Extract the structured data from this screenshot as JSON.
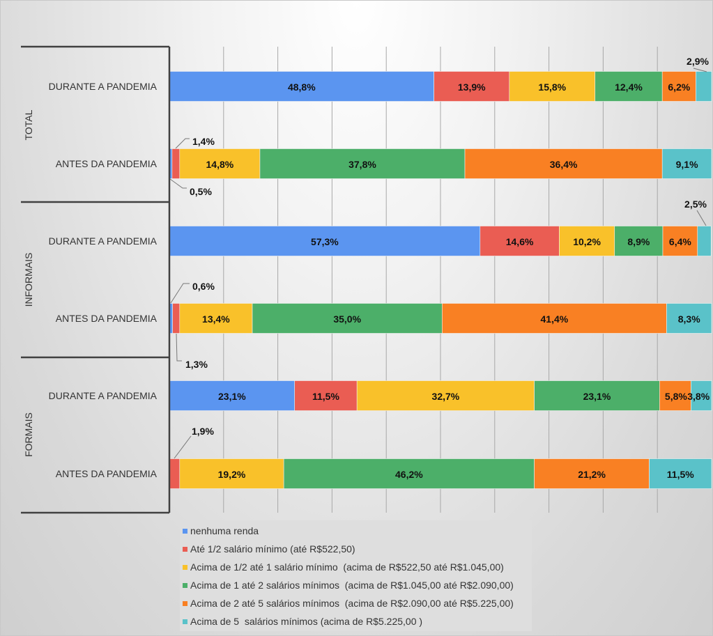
{
  "chart_data": {
    "type": "bar",
    "orientation": "horizontal",
    "stacked": "100%",
    "title": "",
    "xlabel": "",
    "ylabel": "",
    "xlim": [
      0,
      100
    ],
    "grid": true,
    "legend_position": "bottom",
    "groups": [
      {
        "label": "TOTAL",
        "rows": [
          {
            "label": "DURANTE A PANDEMIA",
            "values": [
              48.8,
              13.9,
              15.8,
              12.4,
              6.2,
              2.9
            ]
          },
          {
            "label": "ANTES DA PANDEMIA",
            "values": [
              0.5,
              1.4,
              14.8,
              37.8,
              36.4,
              9.1
            ]
          }
        ]
      },
      {
        "label": "INFORMAIS",
        "rows": [
          {
            "label": "DURANTE A PANDEMIA",
            "values": [
              57.3,
              14.6,
              10.2,
              8.9,
              6.4,
              2.5
            ]
          },
          {
            "label": "ANTES DA PANDEMIA",
            "values": [
              0.6,
              1.3,
              13.4,
              35.0,
              41.4,
              8.3
            ]
          }
        ]
      },
      {
        "label": "FORMAIS",
        "rows": [
          {
            "label": "DURANTE A PANDEMIA",
            "values": [
              23.1,
              11.5,
              32.7,
              23.1,
              5.8,
              3.8
            ]
          },
          {
            "label": "ANTES DA PANDEMIA",
            "values": [
              0,
              1.9,
              19.2,
              46.2,
              21.2,
              11.5
            ]
          }
        ]
      }
    ],
    "value_labels": [
      [
        "48,8%",
        "13,9%",
        "15,8%",
        "12,4%",
        "6,2%",
        "2,9%"
      ],
      [
        "0,5%",
        "1,4%",
        "14,8%",
        "37,8%",
        "36,4%",
        "9,1%"
      ],
      [
        "57,3%",
        "14,6%",
        "10,2%",
        "8,9%",
        "6,4%",
        "2,5%"
      ],
      [
        "0,6%",
        "1,3%",
        "13,4%",
        "35,0%",
        "41,4%",
        "8,3%"
      ],
      [
        "23,1%",
        "11,5%",
        "32,7%",
        "23,1%",
        "5,8%",
        "3,8%"
      ],
      [
        "",
        "1,9%",
        "19,2%",
        "46,2%",
        "21,2%",
        "11,5%"
      ]
    ],
    "series": [
      {
        "name": "nenhuma renda",
        "color": "#5b95f0"
      },
      {
        "name": "Até 1/2 salário mínimo (até R$522,50)",
        "color": "#ea5d53"
      },
      {
        "name": "Acima de 1/2 até 1 salário mínimo  (acima de R$522,50 até R$1.045,00)",
        "color": "#f9c12a"
      },
      {
        "name": "Acima de 1 até 2 salários mínimos  (acima de R$1.045,00 até R$2.090,00)",
        "color": "#4caf69"
      },
      {
        "name": "Acima de 2 até 5 salários mínimos  (acima de R$2.090,00 até R$5.225,00)",
        "color": "#f98023"
      },
      {
        "name": "Acima de 5  salários mínimos (acima de R$5.225,00 )",
        "color": "#5ac2c9"
      }
    ]
  }
}
